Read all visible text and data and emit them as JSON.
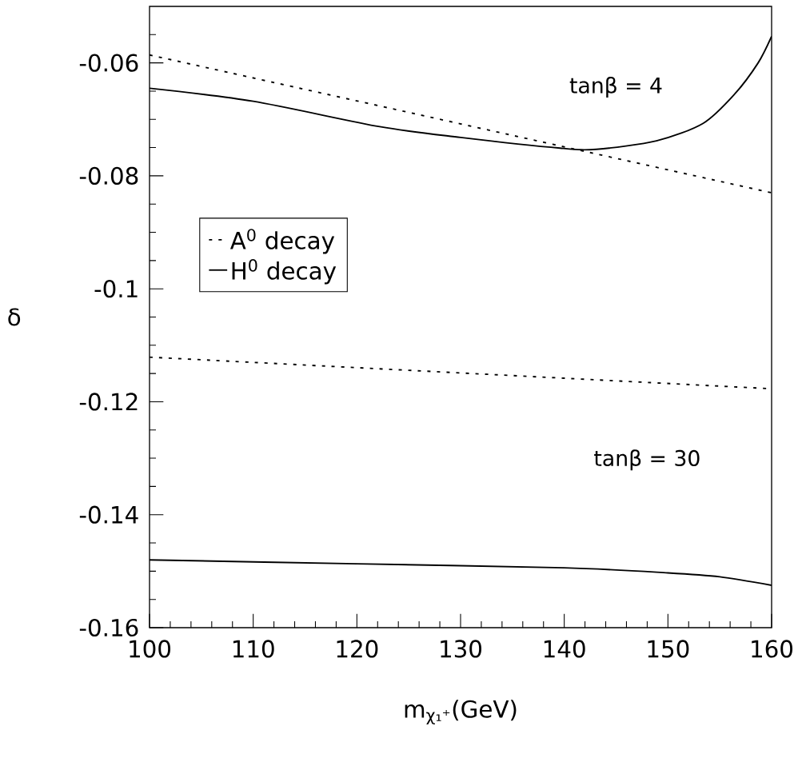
{
  "chart_data": {
    "type": "line",
    "xlabel": "m$_{χ₁⁺}$(GeV)",
    "ylabel": "δ",
    "xlim": [
      100,
      160
    ],
    "ylim": [
      -0.16,
      -0.05
    ],
    "xticks": [
      100,
      {
        "value": 102,
        "label": null
      },
      {
        "value": 104,
        "label": null
      },
      {
        "value": 106,
        "label": null
      },
      {
        "value": 108,
        "label": null
      },
      110,
      {
        "value": 112,
        "label": null
      },
      {
        "value": 114,
        "label": null
      },
      {
        "value": 116,
        "label": null
      },
      {
        "value": 118,
        "label": null
      },
      120,
      {
        "value": 122,
        "label": null
      },
      {
        "value": 124,
        "label": null
      },
      {
        "value": 126,
        "label": null
      },
      {
        "value": 128,
        "label": null
      },
      130,
      {
        "value": 132,
        "label": null
      },
      {
        "value": 134,
        "label": null
      },
      {
        "value": 136,
        "label": null
      },
      {
        "value": 138,
        "label": null
      },
      140,
      {
        "value": 142,
        "label": null
      },
      {
        "value": 144,
        "label": null
      },
      {
        "value": 146,
        "label": null
      },
      {
        "value": 148,
        "label": null
      },
      150,
      {
        "value": 152,
        "label": null
      },
      {
        "value": 154,
        "label": null
      },
      {
        "value": 156,
        "label": null
      },
      {
        "value": 158,
        "label": null
      },
      160
    ],
    "yticks": [
      -0.16,
      {
        "value": -0.155,
        "label": null
      },
      {
        "value": -0.15,
        "label": null
      },
      {
        "value": -0.145,
        "label": null
      },
      -0.14,
      {
        "value": -0.135,
        "label": null
      },
      {
        "value": -0.13,
        "label": null
      },
      {
        "value": -0.125,
        "label": null
      },
      -0.12,
      {
        "value": -0.115,
        "label": null
      },
      {
        "value": -0.11,
        "label": null
      },
      {
        "value": -0.105,
        "label": null
      },
      -0.1,
      {
        "value": -0.095,
        "label": null
      },
      {
        "value": -0.09,
        "label": null
      },
      {
        "value": -0.085,
        "label": null
      },
      -0.08,
      {
        "value": -0.075,
        "label": null
      },
      {
        "value": -0.07,
        "label": null
      },
      {
        "value": -0.065,
        "label": null
      },
      -0.06,
      {
        "value": -0.055,
        "label": null
      }
    ],
    "legend": "left",
    "grid": false,
    "series": [
      {
        "name": "A$^{0}$ decay",
        "color": "#000000",
        "line_style": "dotted",
        "x": [
          100,
          160
        ],
        "values": [
          -0.0586,
          -0.083
        ]
      },
      {
        "name": "H$^{0}$ decay",
        "color": "#000000",
        "line_style": "solid",
        "x": [
          100,
          110,
          122.2,
          130,
          139.6,
          143.1,
          148.9,
          153.4,
          156.4,
          158.7,
          160
        ],
        "values": [
          -0.0645,
          -0.0668,
          -0.0713,
          -0.0732,
          -0.0751,
          -0.0753,
          -0.0738,
          -0.0707,
          -0.0656,
          -0.06,
          -0.0553
        ]
      },
      {
        "color": "#000000",
        "line_style": "dotted",
        "x": [
          100,
          160
        ],
        "values": [
          -0.1121,
          -0.1177
        ]
      },
      {
        "color": "#000000",
        "line_style": "solid",
        "x": [
          100,
          120,
          140,
          150,
          155,
          160
        ],
        "values": [
          -0.148,
          -0.1487,
          -0.1494,
          -0.1503,
          -0.151,
          -0.1525
        ]
      }
    ],
    "annotations": [
      "tanβ = 4",
      "tanβ = 30"
    ]
  }
}
